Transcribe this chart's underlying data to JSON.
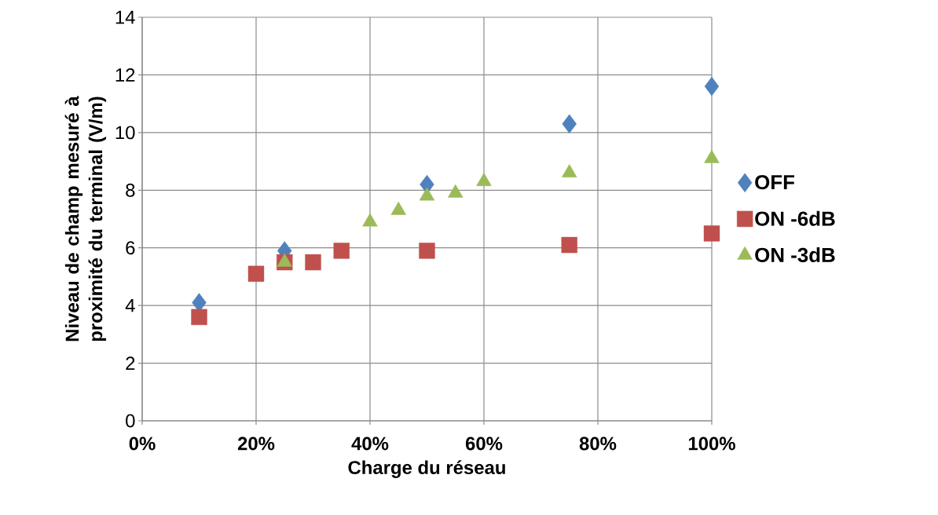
{
  "chart_data": {
    "type": "scatter",
    "xlabel": "Charge du réseau",
    "ylabel": "Niveau de champ mesuré à proximité du terminal (V/m)",
    "xlim": [
      0,
      1
    ],
    "ylim": [
      0,
      14
    ],
    "xticks": [
      {
        "value": 0,
        "label": "0%"
      },
      {
        "value": 0.2,
        "label": "20%"
      },
      {
        "value": 0.4,
        "label": "40%"
      },
      {
        "value": 0.6,
        "label": "60%"
      },
      {
        "value": 0.8,
        "label": "80%"
      },
      {
        "value": 1,
        "label": "100%"
      }
    ],
    "yticks": [
      0,
      2,
      4,
      6,
      8,
      10,
      12,
      14
    ],
    "grid": true,
    "legend": "right",
    "series": [
      {
        "name": "OFF",
        "color": "#4f81bd",
        "marker": "diamond",
        "x": [
          0.1,
          0.25,
          0.5,
          0.75,
          1
        ],
        "values": [
          4.1,
          5.9,
          8.2,
          10.3,
          11.6
        ]
      },
      {
        "name": "ON -6dB",
        "color": "#c0504d",
        "marker": "square",
        "x": [
          0.1,
          0.2,
          0.25,
          0.3,
          0.35,
          0.5,
          0.75,
          1
        ],
        "values": [
          3.6,
          5.1,
          5.5,
          5.5,
          5.9,
          5.9,
          6.1,
          6.5
        ]
      },
      {
        "name": "ON -3dB",
        "color": "#9bbb59",
        "marker": "triangle",
        "x": [
          0.25,
          0.4,
          0.45,
          0.5,
          0.55,
          0.6,
          0.75,
          1
        ],
        "values": [
          5.5,
          6.9,
          7.3,
          7.8,
          7.9,
          8.3,
          8.6,
          9.1
        ]
      }
    ]
  }
}
